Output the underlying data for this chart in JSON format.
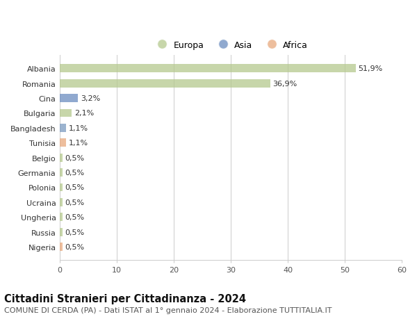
{
  "categories": [
    "Albania",
    "Romania",
    "Cina",
    "Bulgaria",
    "Bangladesh",
    "Tunisia",
    "Belgio",
    "Germania",
    "Polonia",
    "Ucraina",
    "Ungheria",
    "Russia",
    "Nigeria"
  ],
  "values": [
    51.9,
    36.9,
    3.2,
    2.1,
    1.1,
    1.1,
    0.5,
    0.5,
    0.5,
    0.5,
    0.5,
    0.5,
    0.5
  ],
  "labels": [
    "51,9%",
    "36,9%",
    "3,2%",
    "2,1%",
    "1,1%",
    "1,1%",
    "0,5%",
    "0,5%",
    "0,5%",
    "0,5%",
    "0,5%",
    "0,5%",
    "0,5%"
  ],
  "bar_colors": [
    "#b5c98e",
    "#b5c98e",
    "#6b8cbf",
    "#b5c98e",
    "#7a9abf",
    "#e8a87c",
    "#b5c98e",
    "#b5c98e",
    "#b5c98e",
    "#b5c98e",
    "#b5c98e",
    "#b5c98e",
    "#e8a87c"
  ],
  "legend_labels": [
    "Europa",
    "Asia",
    "Africa"
  ],
  "legend_colors": [
    "#b5c98e",
    "#6b8cbf",
    "#e8a87c"
  ],
  "xlim": [
    0,
    60
  ],
  "xticks": [
    0,
    10,
    20,
    30,
    40,
    50,
    60
  ],
  "title": "Cittadini Stranieri per Cittadinanza - 2024",
  "subtitle": "COMUNE DI CERDA (PA) - Dati ISTAT al 1° gennaio 2024 - Elaborazione TUTTITALIA.IT",
  "bg_color": "#ffffff",
  "grid_color": "#cccccc",
  "bar_alpha": 0.75,
  "title_fontsize": 10.5,
  "subtitle_fontsize": 8,
  "label_fontsize": 8,
  "tick_fontsize": 8,
  "legend_fontsize": 9
}
